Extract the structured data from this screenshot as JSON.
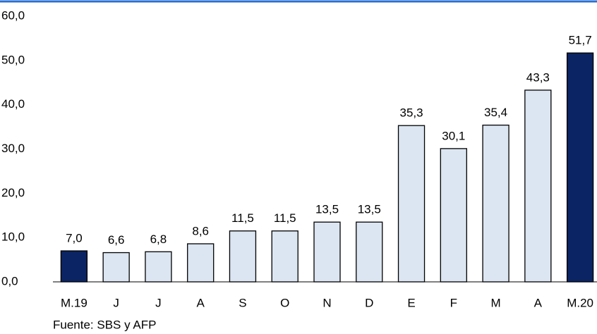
{
  "chart_data": {
    "type": "bar",
    "categories": [
      "M.19",
      "J",
      "J",
      "A",
      "S",
      "O",
      "N",
      "D",
      "E",
      "F",
      "M",
      "A",
      "M.20"
    ],
    "values": [
      7.0,
      6.6,
      6.8,
      8.6,
      11.5,
      11.5,
      13.5,
      13.5,
      35.3,
      30.1,
      35.4,
      43.3,
      51.7
    ],
    "value_labels": [
      "7,0",
      "6,6",
      "6,8",
      "8,6",
      "11,5",
      "11,5",
      "13,5",
      "13,5",
      "35,3",
      "30,1",
      "35,4",
      "43,3",
      "51,7"
    ],
    "colors": [
      "#0b2463",
      "#dce6f2",
      "#dce6f2",
      "#dce6f2",
      "#dce6f2",
      "#dce6f2",
      "#dce6f2",
      "#dce6f2",
      "#dce6f2",
      "#dce6f2",
      "#dce6f2",
      "#dce6f2",
      "#0b2463"
    ],
    "ylim": [
      0,
      60
    ],
    "yticks": [
      {
        "value": 0,
        "label": "0,0"
      },
      {
        "value": 10,
        "label": "10,0"
      },
      {
        "value": 20,
        "label": "20,0"
      },
      {
        "value": 30,
        "label": "30,0"
      },
      {
        "value": 40,
        "label": "40,0"
      },
      {
        "value": 50,
        "label": "50,0"
      },
      {
        "value": 60,
        "label": "60,0"
      }
    ],
    "grid": false,
    "source": "Fuente: SBS y AFP"
  }
}
